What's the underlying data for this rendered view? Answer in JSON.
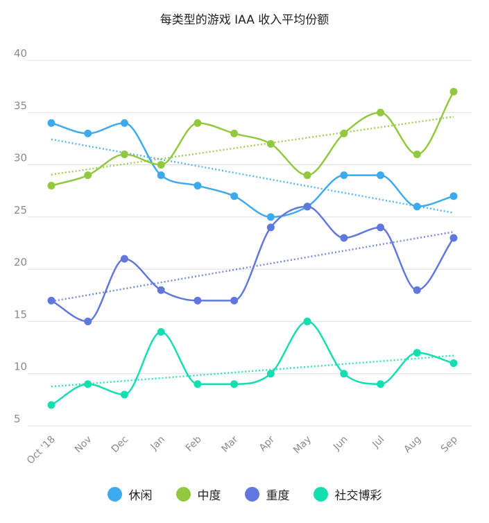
{
  "chart_data": {
    "type": "line",
    "title": "每类型的游戏 IAA 收入平均份额",
    "categories": [
      "Oct '18",
      "Nov",
      "Dec",
      "Jan",
      "Feb",
      "Mar",
      "Apr",
      "May",
      "Jun",
      "Jul",
      "Aug",
      "Sep"
    ],
    "y_ticks": [
      40,
      35,
      30,
      25,
      20,
      15,
      10,
      5
    ],
    "ylim": [
      5,
      40
    ],
    "grid": true,
    "legend_position": "bottom",
    "trendlines": true,
    "series": [
      {
        "name": "休闲",
        "color": "#3eaaee",
        "values": [
          34,
          33,
          34,
          29,
          28,
          27,
          25,
          26,
          29,
          29,
          26,
          27
        ]
      },
      {
        "name": "中度",
        "color": "#92c83e",
        "values": [
          28,
          29,
          31,
          30,
          34,
          33,
          32,
          29,
          33,
          35,
          31,
          37
        ]
      },
      {
        "name": "重度",
        "color": "#6077de",
        "values": [
          17,
          15,
          21,
          18,
          17,
          17,
          24,
          26,
          23,
          24,
          18,
          23
        ]
      },
      {
        "name": "社交博彩",
        "color": "#14deb0",
        "values": [
          7,
          9,
          8,
          14,
          9,
          9,
          10,
          15,
          10,
          9,
          12,
          11
        ]
      }
    ]
  }
}
